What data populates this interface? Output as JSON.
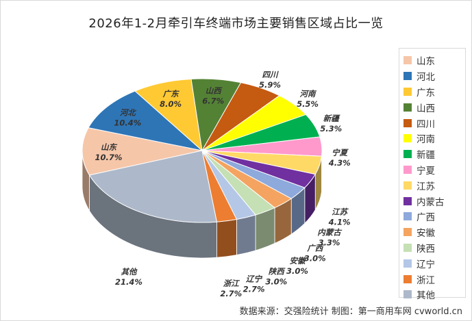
{
  "chart_data": {
    "type": "pie",
    "title": "2026年1-2月牵引车终端市场主要销售区域占比一览",
    "categories": [
      "山东",
      "河北",
      "广东",
      "山西",
      "四川",
      "河南",
      "新疆",
      "宁夏",
      "江苏",
      "内蒙古",
      "广西",
      "安徽",
      "陕西",
      "辽宁",
      "浙江",
      "其他"
    ],
    "values": [
      10.7,
      10.4,
      8.0,
      6.7,
      5.9,
      5.5,
      5.3,
      4.3,
      4.1,
      3.3,
      3.0,
      3.0,
      3.0,
      2.7,
      2.7,
      21.4
    ],
    "value_labels": [
      "10.7%",
      "10.4%",
      "8.0%",
      "6.7%",
      "5.9%",
      "5.5%",
      "5.3%",
      "4.3%",
      "4.1%",
      "3.3%",
      "3.0%",
      "3.0%",
      "3.0%",
      "2.7%",
      "2.7%",
      "21.4%"
    ],
    "colors": [
      "#F6C6A9",
      "#2E75B6",
      "#FFC933",
      "#548235",
      "#C55A11",
      "#FFFF00",
      "#00B050",
      "#FF99CC",
      "#FFD966",
      "#7030A0",
      "#8EA9DB",
      "#F4A460",
      "#C5E0B4",
      "#B4C7E7",
      "#ED7D31",
      "#ADB9CA"
    ],
    "legend_position": "right",
    "legend_entries": [
      "山东",
      "河北",
      "广东",
      "山西",
      "四川",
      "河南",
      "新疆",
      "宁夏",
      "江苏",
      "内蒙古",
      "广西",
      "安徽",
      "陕西",
      "辽宁",
      "浙江",
      "其他"
    ]
  },
  "source_note": "数据来源：交强险统计  制图：第一商用车网 cvworld.cn"
}
